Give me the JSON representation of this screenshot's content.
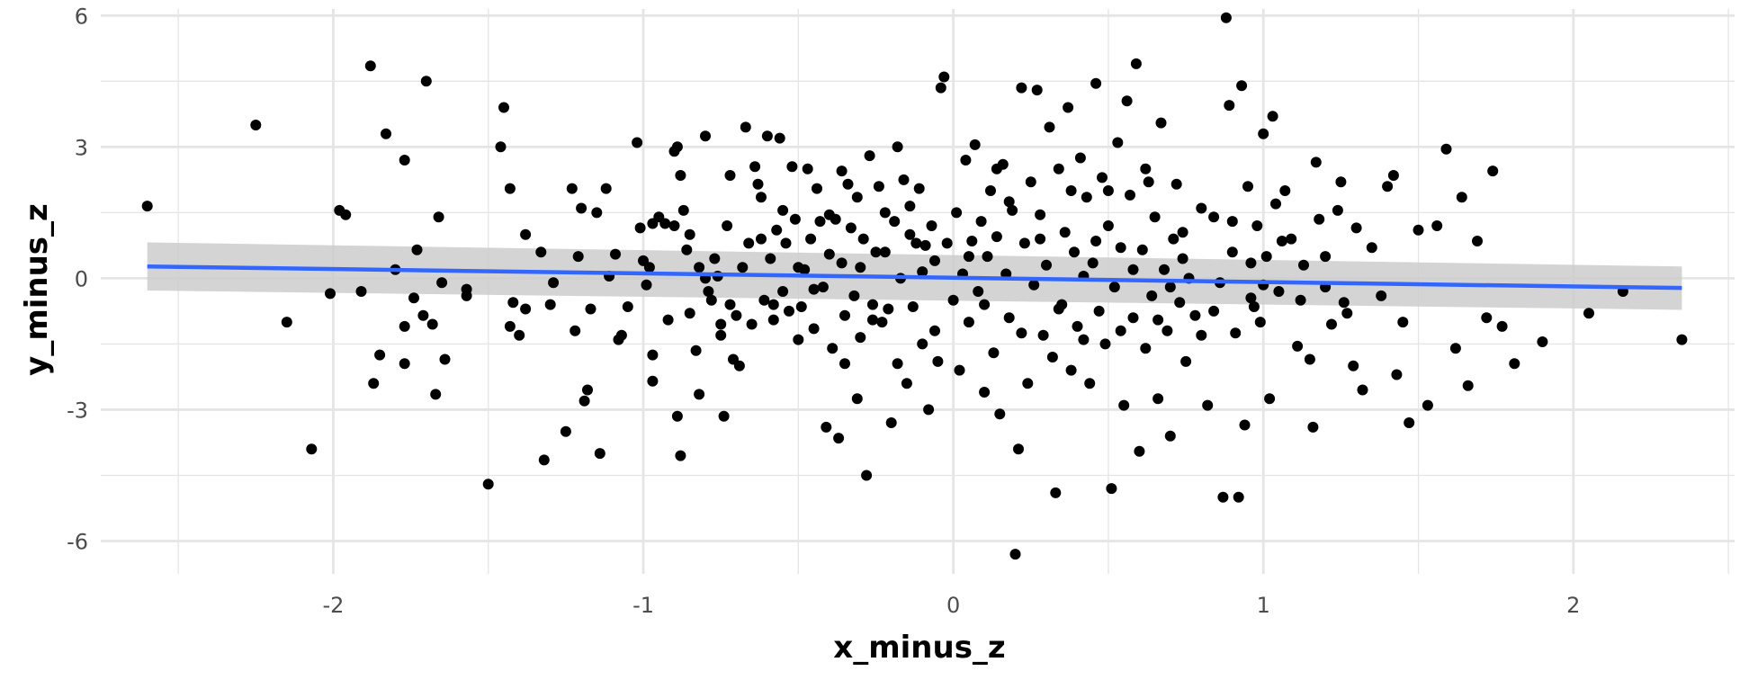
{
  "chart_data": {
    "type": "scatter",
    "title": "",
    "xlabel": "x_minus_z",
    "ylabel": "y_minus_z",
    "xlim": [
      -2.75,
      2.52
    ],
    "ylim": [
      -6.75,
      6.15
    ],
    "grid": true,
    "legend": "none",
    "x_ticks": [
      -2,
      -1,
      0,
      1,
      2
    ],
    "y_ticks": [
      -6,
      -3,
      0,
      3,
      6
    ],
    "colors": {
      "points": "#000000",
      "fit_line": "#3366FF",
      "confidence_band": "#cccccc",
      "grid": "#e5e5e5",
      "tick_text": "#4d4d4d"
    },
    "fit": {
      "x": [
        -2.6,
        2.35
      ],
      "y": [
        0.27,
        -0.22
      ],
      "ci_upper": [
        0.82,
        0.27
      ],
      "ci_lower": [
        -0.28,
        -0.72
      ]
    },
    "points": [
      [
        -2.6,
        1.65
      ],
      [
        -2.25,
        3.5
      ],
      [
        -2.15,
        -1.0
      ],
      [
        -2.07,
        -3.9
      ],
      [
        -2.01,
        -0.35
      ],
      [
        -1.98,
        1.55
      ],
      [
        -1.96,
        1.45
      ],
      [
        -1.91,
        -0.3
      ],
      [
        -1.88,
        4.85
      ],
      [
        -1.87,
        -2.4
      ],
      [
        -1.85,
        -1.75
      ],
      [
        -1.83,
        3.3
      ],
      [
        -1.8,
        0.2
      ],
      [
        -1.77,
        2.7
      ],
      [
        -1.77,
        -1.95
      ],
      [
        -1.77,
        -1.1
      ],
      [
        -1.74,
        -0.45
      ],
      [
        -1.73,
        0.65
      ],
      [
        -1.71,
        -0.85
      ],
      [
        -1.7,
        4.5
      ],
      [
        -1.68,
        -1.05
      ],
      [
        -1.67,
        -2.65
      ],
      [
        -1.66,
        1.4
      ],
      [
        -1.65,
        -0.1
      ],
      [
        -1.64,
        -1.85
      ],
      [
        -1.57,
        -0.25
      ],
      [
        -1.57,
        -0.4
      ],
      [
        -1.5,
        -4.7
      ],
      [
        -1.46,
        3.0
      ],
      [
        -1.45,
        3.9
      ],
      [
        -1.43,
        2.05
      ],
      [
        -1.43,
        -1.1
      ],
      [
        -1.42,
        -0.55
      ],
      [
        -1.4,
        -1.3
      ],
      [
        -1.38,
        1.0
      ],
      [
        -1.38,
        -0.7
      ],
      [
        -1.33,
        0.6
      ],
      [
        -1.32,
        -4.15
      ],
      [
        -1.3,
        -0.6
      ],
      [
        -1.29,
        -0.1
      ],
      [
        -1.25,
        -3.5
      ],
      [
        -1.23,
        2.05
      ],
      [
        -1.22,
        -1.2
      ],
      [
        -1.21,
        0.5
      ],
      [
        -1.2,
        1.6
      ],
      [
        -1.19,
        -2.8
      ],
      [
        -1.18,
        -2.55
      ],
      [
        -1.17,
        -0.7
      ],
      [
        -1.15,
        1.5
      ],
      [
        -1.14,
        -4.0
      ],
      [
        -1.12,
        2.05
      ],
      [
        -1.11,
        0.05
      ],
      [
        -1.09,
        0.55
      ],
      [
        -1.07,
        -1.3
      ],
      [
        -1.02,
        3.1
      ],
      [
        -1.01,
        1.15
      ],
      [
        -1.0,
        0.4
      ],
      [
        -0.99,
        -0.15
      ],
      [
        -0.98,
        0.25
      ],
      [
        -0.97,
        -1.75
      ],
      [
        -0.97,
        -2.35
      ],
      [
        -0.97,
        1.25
      ],
      [
        -0.95,
        1.4
      ],
      [
        -0.93,
        1.25
      ],
      [
        -0.9,
        2.9
      ],
      [
        -0.9,
        1.2
      ],
      [
        -0.89,
        3.0
      ],
      [
        -0.89,
        -3.15
      ],
      [
        -0.88,
        -4.05
      ],
      [
        -0.87,
        1.55
      ],
      [
        -0.86,
        0.65
      ],
      [
        -0.85,
        1.0
      ],
      [
        -0.83,
        -1.65
      ],
      [
        -0.82,
        -2.65
      ],
      [
        -0.8,
        3.25
      ],
      [
        -0.79,
        -0.3
      ],
      [
        -0.78,
        -0.5
      ],
      [
        -0.77,
        0.45
      ],
      [
        -0.76,
        0.05
      ],
      [
        -0.75,
        -1.3
      ],
      [
        -0.74,
        -3.15
      ],
      [
        -0.73,
        1.2
      ],
      [
        -0.72,
        2.35
      ],
      [
        -0.71,
        -1.85
      ],
      [
        -0.7,
        -0.85
      ],
      [
        -0.69,
        -2.0
      ],
      [
        -0.68,
        0.25
      ],
      [
        -0.67,
        3.45
      ],
      [
        -0.66,
        0.8
      ],
      [
        -0.65,
        -1.05
      ],
      [
        -0.63,
        2.15
      ],
      [
        -0.62,
        1.85
      ],
      [
        -0.61,
        -0.5
      ],
      [
        -0.6,
        3.25
      ],
      [
        -0.59,
        0.45
      ],
      [
        -0.58,
        -0.95
      ],
      [
        -0.57,
        1.1
      ],
      [
        -0.56,
        3.2
      ],
      [
        -0.55,
        -0.3
      ],
      [
        -0.54,
        0.8
      ],
      [
        -0.53,
        -0.75
      ],
      [
        -0.52,
        2.55
      ],
      [
        -0.51,
        1.35
      ],
      [
        -0.5,
        -1.4
      ],
      [
        -0.49,
        -0.65
      ],
      [
        -0.48,
        0.2
      ],
      [
        -0.47,
        2.5
      ],
      [
        -0.46,
        0.9
      ],
      [
        -0.45,
        -1.15
      ],
      [
        -0.44,
        2.05
      ],
      [
        -0.43,
        1.3
      ],
      [
        -0.42,
        -0.2
      ],
      [
        -0.41,
        -3.4
      ],
      [
        -0.4,
        0.55
      ],
      [
        -0.39,
        -1.6
      ],
      [
        -0.38,
        1.35
      ],
      [
        -0.37,
        -3.65
      ],
      [
        -0.36,
        0.35
      ],
      [
        -0.35,
        -0.85
      ],
      [
        -0.34,
        2.15
      ],
      [
        -0.33,
        1.15
      ],
      [
        -0.32,
        -0.4
      ],
      [
        -0.31,
        1.85
      ],
      [
        -0.3,
        -1.35
      ],
      [
        -0.29,
        0.9
      ],
      [
        -0.28,
        -4.5
      ],
      [
        -0.27,
        2.8
      ],
      [
        -0.26,
        -0.6
      ],
      [
        -0.25,
        0.6
      ],
      [
        -0.24,
        2.1
      ],
      [
        -0.23,
        -1.0
      ],
      [
        -0.22,
        1.5
      ],
      [
        -0.21,
        -0.7
      ],
      [
        -0.2,
        -3.3
      ],
      [
        -0.19,
        1.3
      ],
      [
        -0.18,
        3.0
      ],
      [
        -0.17,
        0.0
      ],
      [
        -0.16,
        2.25
      ],
      [
        -0.15,
        -2.4
      ],
      [
        -0.14,
        1.65
      ],
      [
        -0.13,
        -0.65
      ],
      [
        -0.12,
        0.8
      ],
      [
        -0.11,
        2.05
      ],
      [
        -0.1,
        -1.5
      ],
      [
        -0.09,
        0.75
      ],
      [
        -0.08,
        -3.0
      ],
      [
        -0.07,
        1.2
      ],
      [
        -0.06,
        0.4
      ],
      [
        -0.05,
        -1.9
      ],
      [
        -0.04,
        4.35
      ],
      [
        -0.03,
        4.6
      ],
      [
        -0.02,
        0.8
      ],
      [
        0.0,
        -0.5
      ],
      [
        0.01,
        1.5
      ],
      [
        0.02,
        -2.1
      ],
      [
        0.03,
        0.1
      ],
      [
        0.04,
        2.7
      ],
      [
        0.05,
        -1.0
      ],
      [
        0.06,
        0.85
      ],
      [
        0.07,
        3.05
      ],
      [
        0.08,
        -0.3
      ],
      [
        0.09,
        1.3
      ],
      [
        0.1,
        -2.6
      ],
      [
        0.11,
        0.5
      ],
      [
        0.12,
        2.0
      ],
      [
        0.13,
        -1.7
      ],
      [
        0.14,
        0.95
      ],
      [
        0.15,
        -3.1
      ],
      [
        0.16,
        2.6
      ],
      [
        0.17,
        0.1
      ],
      [
        0.18,
        -0.9
      ],
      [
        0.19,
        1.55
      ],
      [
        0.2,
        -6.3
      ],
      [
        0.21,
        -3.9
      ],
      [
        0.22,
        4.35
      ],
      [
        0.23,
        0.8
      ],
      [
        0.24,
        -2.4
      ],
      [
        0.25,
        2.2
      ],
      [
        0.26,
        -0.15
      ],
      [
        0.27,
        4.3
      ],
      [
        0.28,
        1.45
      ],
      [
        0.29,
        -1.3
      ],
      [
        0.3,
        0.3
      ],
      [
        0.31,
        3.45
      ],
      [
        0.32,
        -1.8
      ],
      [
        0.33,
        -4.9
      ],
      [
        0.34,
        2.5
      ],
      [
        0.35,
        -0.6
      ],
      [
        0.36,
        1.05
      ],
      [
        0.37,
        3.9
      ],
      [
        0.38,
        -2.1
      ],
      [
        0.39,
        0.6
      ],
      [
        0.4,
        -1.1
      ],
      [
        0.41,
        2.75
      ],
      [
        0.42,
        0.05
      ],
      [
        0.43,
        1.85
      ],
      [
        0.44,
        -2.4
      ],
      [
        0.45,
        0.35
      ],
      [
        0.46,
        4.45
      ],
      [
        0.47,
        -0.75
      ],
      [
        0.48,
        2.3
      ],
      [
        0.49,
        -1.5
      ],
      [
        0.5,
        1.2
      ],
      [
        0.51,
        -4.8
      ],
      [
        0.52,
        -0.2
      ],
      [
        0.53,
        3.1
      ],
      [
        0.54,
        0.7
      ],
      [
        0.55,
        -2.9
      ],
      [
        0.56,
        4.05
      ],
      [
        0.57,
        1.9
      ],
      [
        0.58,
        -0.9
      ],
      [
        0.59,
        4.9
      ],
      [
        0.6,
        -3.95
      ],
      [
        0.61,
        0.65
      ],
      [
        0.62,
        -1.6
      ],
      [
        0.63,
        2.2
      ],
      [
        0.64,
        -0.4
      ],
      [
        0.65,
        1.4
      ],
      [
        0.66,
        -2.75
      ],
      [
        0.67,
        3.55
      ],
      [
        0.68,
        0.2
      ],
      [
        0.69,
        -1.2
      ],
      [
        0.7,
        -3.6
      ],
      [
        0.71,
        0.9
      ],
      [
        0.72,
        2.15
      ],
      [
        0.73,
        -0.55
      ],
      [
        0.74,
        1.05
      ],
      [
        0.75,
        -1.9
      ],
      [
        0.76,
        0.0
      ],
      [
        0.78,
        -0.85
      ],
      [
        0.8,
        1.6
      ],
      [
        0.82,
        -2.9
      ],
      [
        0.84,
        1.4
      ],
      [
        0.86,
        -0.1
      ],
      [
        0.87,
        -5.0
      ],
      [
        0.88,
        5.95
      ],
      [
        0.89,
        3.95
      ],
      [
        0.9,
        0.6
      ],
      [
        0.91,
        -1.25
      ],
      [
        0.92,
        -5.0
      ],
      [
        0.93,
        4.4
      ],
      [
        0.94,
        -3.35
      ],
      [
        0.95,
        2.1
      ],
      [
        0.96,
        0.35
      ],
      [
        0.97,
        -0.65
      ],
      [
        0.98,
        1.2
      ],
      [
        0.99,
        -1.0
      ],
      [
        1.0,
        3.3
      ],
      [
        1.01,
        0.5
      ],
      [
        1.02,
        -2.75
      ],
      [
        1.03,
        3.7
      ],
      [
        1.04,
        1.7
      ],
      [
        1.05,
        -0.3
      ],
      [
        1.07,
        2.0
      ],
      [
        1.09,
        0.9
      ],
      [
        1.11,
        -1.55
      ],
      [
        1.13,
        0.3
      ],
      [
        1.15,
        -1.85
      ],
      [
        1.16,
        -3.4
      ],
      [
        1.17,
        2.65
      ],
      [
        1.18,
        1.35
      ],
      [
        1.2,
        -0.2
      ],
      [
        1.22,
        -1.05
      ],
      [
        1.24,
        1.55
      ],
      [
        1.25,
        2.2
      ],
      [
        1.27,
        -0.8
      ],
      [
        1.29,
        -2.0
      ],
      [
        1.3,
        1.15
      ],
      [
        1.32,
        -2.55
      ],
      [
        1.35,
        0.7
      ],
      [
        1.38,
        -0.4
      ],
      [
        1.4,
        2.1
      ],
      [
        1.42,
        2.35
      ],
      [
        1.43,
        -2.2
      ],
      [
        1.45,
        -1.0
      ],
      [
        1.47,
        -3.3
      ],
      [
        1.5,
        1.1
      ],
      [
        1.53,
        -2.9
      ],
      [
        1.56,
        1.2
      ],
      [
        1.59,
        2.95
      ],
      [
        1.62,
        -1.6
      ],
      [
        1.64,
        1.85
      ],
      [
        1.66,
        -2.45
      ],
      [
        1.69,
        0.85
      ],
      [
        1.72,
        -0.9
      ],
      [
        1.74,
        2.45
      ],
      [
        1.77,
        -1.1
      ],
      [
        1.81,
        -1.95
      ],
      [
        1.9,
        -1.45
      ],
      [
        2.05,
        -0.8
      ],
      [
        2.16,
        -0.3
      ],
      [
        2.35,
        -1.4
      ],
      [
        -0.58,
        -0.6
      ],
      [
        -0.62,
        0.9
      ],
      [
        -0.64,
        2.55
      ],
      [
        -0.72,
        -0.6
      ],
      [
        -0.75,
        -1.05
      ],
      [
        -0.8,
        0.0
      ],
      [
        -0.82,
        0.25
      ],
      [
        -0.85,
        -0.8
      ],
      [
        -0.45,
        -0.25
      ],
      [
        -0.4,
        1.45
      ],
      [
        -0.35,
        -1.95
      ],
      [
        -0.3,
        0.25
      ],
      [
        -0.26,
        -0.95
      ],
      [
        -0.22,
        0.6
      ],
      [
        -0.18,
        -1.95
      ],
      [
        -0.14,
        1.0
      ],
      [
        -0.1,
        0.15
      ],
      [
        -0.06,
        -1.2
      ],
      [
        0.05,
        0.5
      ],
      [
        0.1,
        -0.6
      ],
      [
        0.14,
        2.5
      ],
      [
        0.18,
        1.75
      ],
      [
        0.22,
        -1.25
      ],
      [
        0.28,
        0.9
      ],
      [
        0.34,
        -0.7
      ],
      [
        0.38,
        2.0
      ],
      [
        0.42,
        -1.4
      ],
      [
        0.46,
        0.85
      ],
      [
        0.5,
        2.0
      ],
      [
        0.54,
        -1.2
      ],
      [
        0.58,
        0.2
      ],
      [
        0.62,
        2.5
      ],
      [
        0.66,
        -0.95
      ],
      [
        0.7,
        -0.2
      ],
      [
        0.74,
        0.45
      ],
      [
        0.8,
        -1.3
      ],
      [
        0.84,
        -0.75
      ],
      [
        0.9,
        1.3
      ],
      [
        0.96,
        -0.45
      ],
      [
        1.0,
        -0.15
      ],
      [
        1.06,
        0.85
      ],
      [
        1.12,
        -0.5
      ],
      [
        1.2,
        0.5
      ],
      [
        1.26,
        -0.55
      ],
      [
        -1.05,
        -0.65
      ],
      [
        -1.08,
        -1.4
      ],
      [
        -0.92,
        -0.95
      ],
      [
        -0.88,
        2.35
      ],
      [
        -0.55,
        1.55
      ],
      [
        -0.5,
        0.25
      ],
      [
        -0.36,
        2.45
      ],
      [
        -0.31,
        -2.75
      ]
    ]
  }
}
